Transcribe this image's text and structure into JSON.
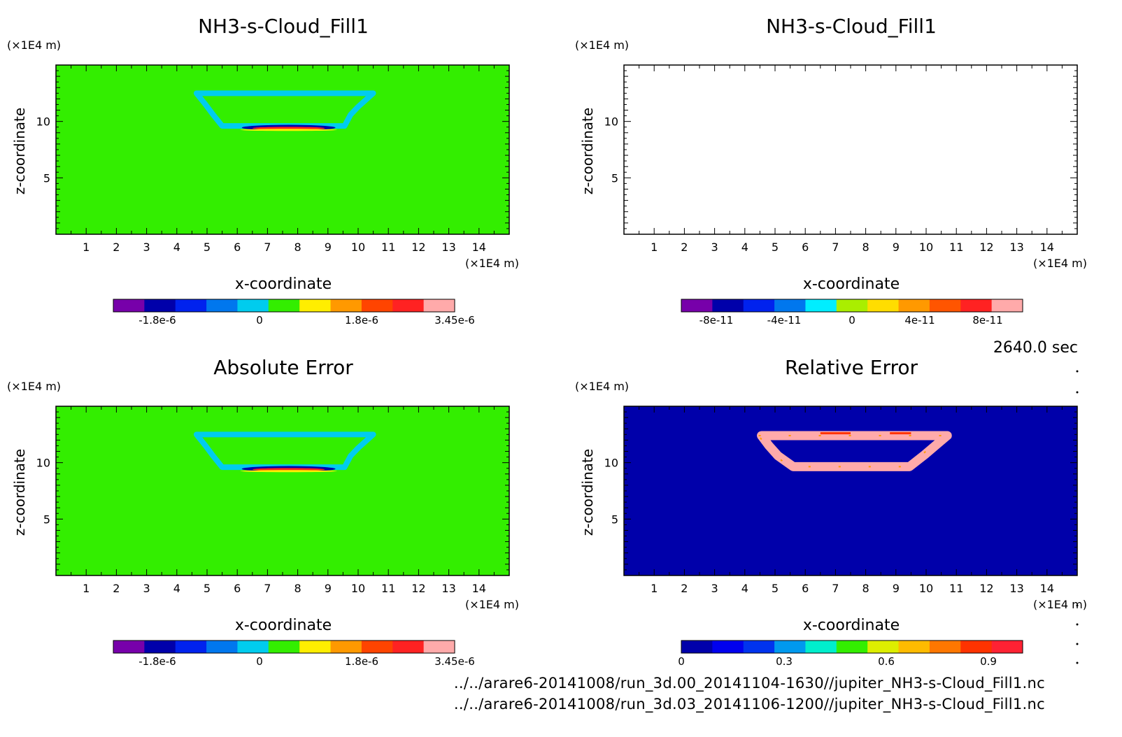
{
  "time_label": "2640.0 sec",
  "file_paths": [
    "../../arare6-20141008/run_3d.00_20141104-1630//jupiter_NH3-s-Cloud_Fill1.nc",
    "../../arare6-20141008/run_3d.03_20141106-1200//jupiter_NH3-s-Cloud_Fill1.nc"
  ],
  "colors": {
    "green_field": "#33ee00",
    "cyan_ring": "#00ccee",
    "navy_field": "#0000aa",
    "pink_ring": "#ffaaaa"
  },
  "chart_data": [
    {
      "type": "heatmap",
      "title": "NH3-s-Cloud_Fill1",
      "xlabel": "x-coordinate",
      "ylabel": "z-coordinate",
      "x_unit": "(×1E4 m)",
      "y_unit": "(×1E4 m)",
      "xlim": [
        0,
        15
      ],
      "ylim": [
        0,
        15
      ],
      "xticks": [
        "1",
        "2",
        "3",
        "4",
        "5",
        "6",
        "7",
        "8",
        "9",
        "10",
        "11",
        "12",
        "13",
        "14"
      ],
      "yticks": [
        "5",
        "10"
      ],
      "background": "uniform ~0 (green)",
      "feature": "cyan ring of slightly negative values, x≈4.7–10.5, z≈9.6–12.5; thin band of large +/- values near z≈9.5, x≈6.5–9",
      "colorbar": {
        "ticks": [
          "-1.8e-6",
          "0",
          "1.8e-6",
          "3.45e-6"
        ],
        "colors": [
          "#7700aa",
          "#0000aa",
          "#0022ee",
          "#0077ee",
          "#00ccee",
          "#33ee00",
          "#ffee00",
          "#ff9900",
          "#ff4400",
          "#ff2222",
          "#ffaaaa"
        ]
      }
    },
    {
      "type": "heatmap",
      "title": "NH3-s-Cloud_Fill1",
      "xlabel": "x-coordinate",
      "ylabel": "z-coordinate",
      "x_unit": "(×1E4 m)",
      "y_unit": "(×1E4 m)",
      "xlim": [
        0,
        15
      ],
      "ylim": [
        0,
        15
      ],
      "xticks": [
        "1",
        "2",
        "3",
        "4",
        "5",
        "6",
        "7",
        "8",
        "9",
        "10",
        "11",
        "12",
        "13",
        "14"
      ],
      "yticks": [
        "5",
        "10"
      ],
      "background": "empty (white)",
      "colorbar": {
        "ticks": [
          "-8e-11",
          "-4e-11",
          "0",
          "4e-11",
          "8e-11"
        ],
        "colors": [
          "#7700aa",
          "#0000aa",
          "#0022ee",
          "#0077ee",
          "#00eeff",
          "#aaee00",
          "#ffdd00",
          "#ff9900",
          "#ff5500",
          "#ff2222",
          "#ffaaaa"
        ]
      }
    },
    {
      "type": "heatmap",
      "title": "Absolute Error",
      "xlabel": "x-coordinate",
      "ylabel": "z-coordinate",
      "x_unit": "(×1E4 m)",
      "y_unit": "(×1E4 m)",
      "xlim": [
        0,
        15
      ],
      "ylim": [
        0,
        15
      ],
      "xticks": [
        "1",
        "2",
        "3",
        "4",
        "5",
        "6",
        "7",
        "8",
        "9",
        "10",
        "11",
        "12",
        "13",
        "14"
      ],
      "yticks": [
        "5",
        "10"
      ],
      "background": "uniform ~0 (green)",
      "feature": "same structure as panel 1",
      "colorbar": {
        "ticks": [
          "-1.8e-6",
          "0",
          "1.8e-6",
          "3.45e-6"
        ],
        "colors": [
          "#7700aa",
          "#0000aa",
          "#0022ee",
          "#0077ee",
          "#00ccee",
          "#33ee00",
          "#ffee00",
          "#ff9900",
          "#ff4400",
          "#ff2222",
          "#ffaaaa"
        ]
      }
    },
    {
      "type": "heatmap",
      "title": "Relative Error",
      "xlabel": "x-coordinate",
      "ylabel": "z-coordinate",
      "x_unit": "(×1E4 m)",
      "y_unit": "(×1E4 m)",
      "xlim": [
        0,
        15
      ],
      "ylim": [
        0,
        15
      ],
      "xticks": [
        "1",
        "2",
        "3",
        "4",
        "5",
        "6",
        "7",
        "8",
        "9",
        "10",
        "11",
        "12",
        "13",
        "14"
      ],
      "yticks": [
        "5",
        "10"
      ],
      "background": "~0 (navy)",
      "feature": "ring of relative error ~1 (pink), x≈4.5–10.7, z≈9.5–12.5",
      "colorbar": {
        "ticks": [
          "0",
          "0.3",
          "0.6",
          "0.9"
        ],
        "colors": [
          "#0000aa",
          "#0000ee",
          "#0033ee",
          "#0099ee",
          "#00eecc",
          "#33ee00",
          "#ddee00",
          "#ffbb00",
          "#ff7700",
          "#ff3300",
          "#ff2233"
        ]
      }
    }
  ]
}
